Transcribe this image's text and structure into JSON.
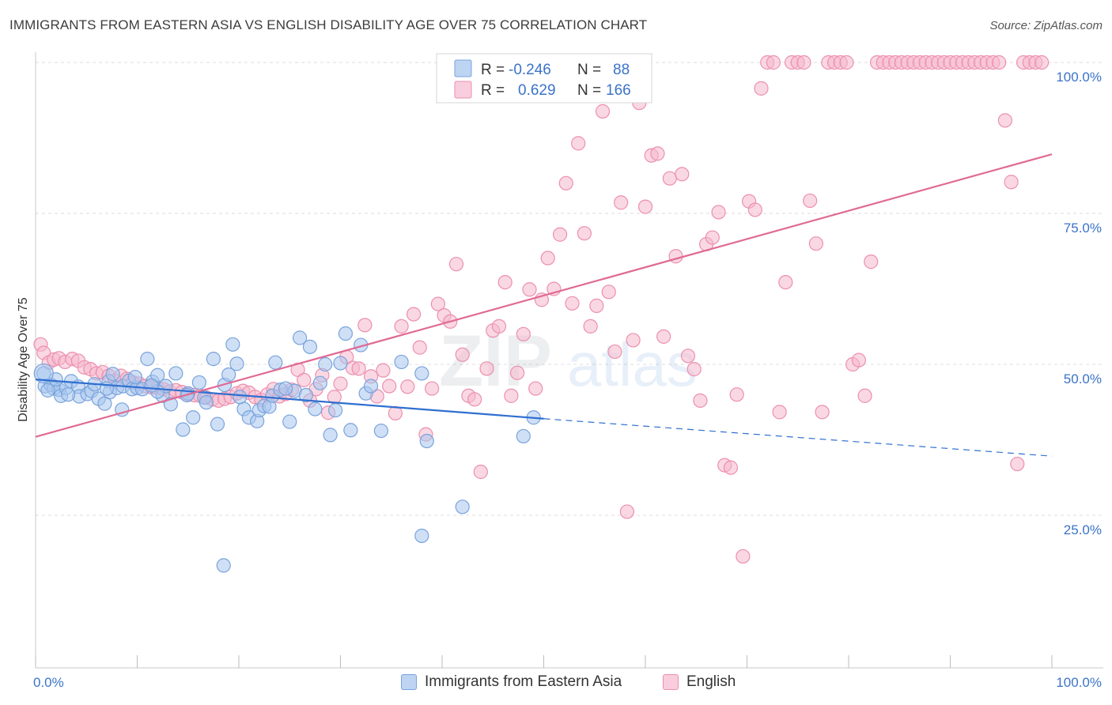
{
  "header": {
    "title": "IMMIGRANTS FROM EASTERN ASIA VS ENGLISH DISABILITY AGE OVER 75 CORRELATION CHART",
    "source": "Source: ZipAtlas.com"
  },
  "watermark": {
    "zip": "ZIP",
    "atlas": "atlas"
  },
  "legend_top": {
    "rows": [
      {
        "r_label": "R =",
        "r_value": "-0.246",
        "n_label": "N =",
        "n_value": "88"
      },
      {
        "r_label": "R =",
        "r_value": "0.629",
        "n_label": "N =",
        "n_value": "166"
      }
    ]
  },
  "colors": {
    "blue_fill": "#a8c6ee",
    "blue_stroke": "#7aa3dc",
    "blue_line": "#2f6fd0",
    "pink_fill": "#f6b8cc",
    "pink_stroke": "#ec8fae",
    "pink_line": "#e06a94",
    "tick_text": "#3b73c8"
  },
  "chart_data": {
    "type": "scatter",
    "title": "IMMIGRANTS FROM EASTERN ASIA VS ENGLISH DISABILITY AGE OVER 75 CORRELATION CHART",
    "xlabel": "",
    "ylabel": "Disability Age Over 75",
    "xlim": [
      0,
      100
    ],
    "ylim": [
      0,
      103
    ],
    "x_tick_labels": [
      "0.0%",
      "100.0%"
    ],
    "y_tick_labels": [
      "25.0%",
      "50.0%",
      "75.0%",
      "100.0%"
    ],
    "y_ticks": [
      25,
      50,
      75,
      100
    ],
    "grid": "dashed horizontal",
    "legend": "top-center and bottom",
    "series": [
      {
        "name": "Immigrants from Eastern Asia",
        "color": "#a8c6ee",
        "trend": {
          "x": [
            0,
            50
          ],
          "y": [
            47.5,
            41.0
          ],
          "dashed_to": [
            100,
            34.8
          ]
        },
        "points": [
          [
            0.8,
            48.5
          ],
          [
            0.9,
            46.4
          ],
          [
            1.5,
            46.6
          ],
          [
            1.8,
            46.0
          ],
          [
            2.3,
            45.8
          ],
          [
            2.5,
            44.8
          ],
          [
            3.0,
            46.1
          ],
          [
            3.5,
            47.2
          ],
          [
            4.2,
            46.3
          ],
          [
            4.3,
            44.7
          ],
          [
            5.1,
            45.1
          ],
          [
            5.5,
            45.6
          ],
          [
            6.2,
            44.3
          ],
          [
            6.8,
            43.5
          ],
          [
            7.2,
            47.2
          ],
          [
            7.3,
            45.4
          ],
          [
            7.6,
            48.4
          ],
          [
            8.0,
            46.1
          ],
          [
            8.5,
            42.5
          ],
          [
            8.6,
            46.4
          ],
          [
            9.2,
            47.3
          ],
          [
            9.5,
            45.9
          ],
          [
            10.0,
            46.1
          ],
          [
            10.5,
            45.9
          ],
          [
            11.0,
            50.9
          ],
          [
            11.5,
            47.1
          ],
          [
            12.0,
            48.2
          ],
          [
            12.5,
            44.8
          ],
          [
            12.8,
            46.4
          ],
          [
            13.3,
            43.4
          ],
          [
            13.8,
            48.5
          ],
          [
            14.5,
            39.2
          ],
          [
            15.0,
            45.2
          ],
          [
            15.5,
            41.2
          ],
          [
            16.1,
            47.0
          ],
          [
            16.6,
            44.5
          ],
          [
            17.5,
            50.9
          ],
          [
            17.9,
            40.1
          ],
          [
            18.6,
            46.6
          ],
          [
            19.0,
            48.3
          ],
          [
            19.4,
            53.3
          ],
          [
            19.8,
            50.1
          ],
          [
            20.5,
            42.6
          ],
          [
            21.0,
            41.2
          ],
          [
            21.8,
            40.6
          ],
          [
            22.0,
            42.4
          ],
          [
            22.5,
            43.1
          ],
          [
            23.0,
            43.0
          ],
          [
            23.3,
            44.8
          ],
          [
            23.6,
            50.3
          ],
          [
            24.1,
            45.8
          ],
          [
            25.0,
            40.5
          ],
          [
            25.5,
            45.6
          ],
          [
            26.0,
            54.4
          ],
          [
            27.0,
            52.9
          ],
          [
            27.5,
            42.6
          ],
          [
            28.0,
            46.9
          ],
          [
            28.5,
            50.0
          ],
          [
            29.0,
            38.3
          ],
          [
            29.5,
            42.4
          ],
          [
            30.0,
            50.2
          ],
          [
            30.5,
            55.1
          ],
          [
            31.0,
            39.1
          ],
          [
            32.0,
            53.2
          ],
          [
            32.5,
            45.2
          ],
          [
            33.0,
            46.4
          ],
          [
            34.0,
            39.0
          ],
          [
            36.0,
            50.4
          ],
          [
            38.0,
            48.5
          ],
          [
            38.5,
            37.3
          ],
          [
            42.0,
            26.4
          ],
          [
            38.0,
            21.6
          ],
          [
            48.0,
            38.1
          ],
          [
            49.0,
            41.2
          ],
          [
            18.5,
            16.7
          ],
          [
            3.2,
            45.0
          ],
          [
            5.8,
            46.7
          ],
          [
            9.8,
            47.9
          ],
          [
            12.0,
            45.5
          ],
          [
            14.9,
            44.9
          ],
          [
            16.8,
            43.7
          ],
          [
            20.1,
            44.6
          ],
          [
            24.6,
            46.0
          ],
          [
            26.6,
            44.9
          ],
          [
            11.4,
            46.5
          ],
          [
            7.0,
            46.0
          ],
          [
            2.0,
            47.5
          ],
          [
            1.2,
            45.7
          ]
        ]
      },
      {
        "name": "English",
        "color": "#f6b8cc",
        "trend": {
          "x": [
            0,
            100
          ],
          "y": [
            38.0,
            84.8
          ]
        },
        "points": [
          [
            0.5,
            53.3
          ],
          [
            0.8,
            51.9
          ],
          [
            1.3,
            50.3
          ],
          [
            1.8,
            50.8
          ],
          [
            2.3,
            51.0
          ],
          [
            2.9,
            50.4
          ],
          [
            3.6,
            50.9
          ],
          [
            4.2,
            50.6
          ],
          [
            4.8,
            49.5
          ],
          [
            5.4,
            49.2
          ],
          [
            6.0,
            48.5
          ],
          [
            6.6,
            48.7
          ],
          [
            7.2,
            48.1
          ],
          [
            7.8,
            47.3
          ],
          [
            8.4,
            48.1
          ],
          [
            9.0,
            47.6
          ],
          [
            9.6,
            47.0
          ],
          [
            10.2,
            46.8
          ],
          [
            10.8,
            46.4
          ],
          [
            11.4,
            46.2
          ],
          [
            12.0,
            46.1
          ],
          [
            12.6,
            45.9
          ],
          [
            13.2,
            45.5
          ],
          [
            13.8,
            45.7
          ],
          [
            14.4,
            45.4
          ],
          [
            15.0,
            45.1
          ],
          [
            15.6,
            44.9
          ],
          [
            16.2,
            44.8
          ],
          [
            16.8,
            44.5
          ],
          [
            17.4,
            44.2
          ],
          [
            18.0,
            44.0
          ],
          [
            18.6,
            44.3
          ],
          [
            19.2,
            44.6
          ],
          [
            19.8,
            45.2
          ],
          [
            20.4,
            45.6
          ],
          [
            21.0,
            45.3
          ],
          [
            21.6,
            44.6
          ],
          [
            22.2,
            44.1
          ],
          [
            22.8,
            45.0
          ],
          [
            23.4,
            45.9
          ],
          [
            24.0,
            44.7
          ],
          [
            24.6,
            45.1
          ],
          [
            25.2,
            45.8
          ],
          [
            25.8,
            49.1
          ],
          [
            26.4,
            47.4
          ],
          [
            27.0,
            44.0
          ],
          [
            27.6,
            45.9
          ],
          [
            28.2,
            48.2
          ],
          [
            28.8,
            42.0
          ],
          [
            29.4,
            44.6
          ],
          [
            30.0,
            46.8
          ],
          [
            30.6,
            51.2
          ],
          [
            31.2,
            49.4
          ],
          [
            31.8,
            49.3
          ],
          [
            32.4,
            56.5
          ],
          [
            33.0,
            48.0
          ],
          [
            33.6,
            44.7
          ],
          [
            34.2,
            49.0
          ],
          [
            34.8,
            46.4
          ],
          [
            35.4,
            41.9
          ],
          [
            36.0,
            56.3
          ],
          [
            36.6,
            46.3
          ],
          [
            37.2,
            58.3
          ],
          [
            37.8,
            52.8
          ],
          [
            38.4,
            38.4
          ],
          [
            39.0,
            46.0
          ],
          [
            39.6,
            60.0
          ],
          [
            40.2,
            58.1
          ],
          [
            40.8,
            57.1
          ],
          [
            41.4,
            66.6
          ],
          [
            42.0,
            51.6
          ],
          [
            42.6,
            44.8
          ],
          [
            43.2,
            44.2
          ],
          [
            43.8,
            32.2
          ],
          [
            44.4,
            49.3
          ],
          [
            45.0,
            55.6
          ],
          [
            45.6,
            56.3
          ],
          [
            46.2,
            63.6
          ],
          [
            46.8,
            44.8
          ],
          [
            47.4,
            48.6
          ],
          [
            48.0,
            55.0
          ],
          [
            48.6,
            62.4
          ],
          [
            49.2,
            46.0
          ],
          [
            49.8,
            60.7
          ],
          [
            50.4,
            67.6
          ],
          [
            51.0,
            62.5
          ],
          [
            51.6,
            71.5
          ],
          [
            52.2,
            80.0
          ],
          [
            52.8,
            60.1
          ],
          [
            53.4,
            86.6
          ],
          [
            54.0,
            71.7
          ],
          [
            54.6,
            56.3
          ],
          [
            55.2,
            59.7
          ],
          [
            55.8,
            91.9
          ],
          [
            56.4,
            62.0
          ],
          [
            57.0,
            52.1
          ],
          [
            57.6,
            76.8
          ],
          [
            58.2,
            25.6
          ],
          [
            58.8,
            54.0
          ],
          [
            59.4,
            93.3
          ],
          [
            60.0,
            76.1
          ],
          [
            60.6,
            84.6
          ],
          [
            61.2,
            84.9
          ],
          [
            61.8,
            54.6
          ],
          [
            62.4,
            80.8
          ],
          [
            63.0,
            67.9
          ],
          [
            63.6,
            81.5
          ],
          [
            64.2,
            51.4
          ],
          [
            64.8,
            49.2
          ],
          [
            65.4,
            44.0
          ],
          [
            66.0,
            69.9
          ],
          [
            66.6,
            71.0
          ],
          [
            67.2,
            75.2
          ],
          [
            67.8,
            33.3
          ],
          [
            68.4,
            32.9
          ],
          [
            69.0,
            45.0
          ],
          [
            69.6,
            18.2
          ],
          [
            70.2,
            77.0
          ],
          [
            70.8,
            75.6
          ],
          [
            71.4,
            95.7
          ],
          [
            72.0,
            100.0
          ],
          [
            72.6,
            100.0
          ],
          [
            73.2,
            42.1
          ],
          [
            73.8,
            63.6
          ],
          [
            74.4,
            100.0
          ],
          [
            75.0,
            100.0
          ],
          [
            75.6,
            100.0
          ],
          [
            76.2,
            77.1
          ],
          [
            76.8,
            70.0
          ],
          [
            77.4,
            42.1
          ],
          [
            78.0,
            100.0
          ],
          [
            78.6,
            100.0
          ],
          [
            79.2,
            100.0
          ],
          [
            79.8,
            100.0
          ],
          [
            80.4,
            50.0
          ],
          [
            81.0,
            50.7
          ],
          [
            81.6,
            44.8
          ],
          [
            82.2,
            67.0
          ],
          [
            82.8,
            100.0
          ],
          [
            83.4,
            100.0
          ],
          [
            84.0,
            100.0
          ],
          [
            84.6,
            100.0
          ],
          [
            85.2,
            100.0
          ],
          [
            85.8,
            100.0
          ],
          [
            86.4,
            100.0
          ],
          [
            87.0,
            100.0
          ],
          [
            87.6,
            100.0
          ],
          [
            88.2,
            100.0
          ],
          [
            88.8,
            100.0
          ],
          [
            89.4,
            100.0
          ],
          [
            90.0,
            100.0
          ],
          [
            90.6,
            100.0
          ],
          [
            91.2,
            100.0
          ],
          [
            91.8,
            100.0
          ],
          [
            92.4,
            100.0
          ],
          [
            93.0,
            100.0
          ],
          [
            93.6,
            100.0
          ],
          [
            94.2,
            100.0
          ],
          [
            94.8,
            100.0
          ],
          [
            95.4,
            90.4
          ],
          [
            96.0,
            80.2
          ],
          [
            96.6,
            33.5
          ],
          [
            97.2,
            100.0
          ],
          [
            97.8,
            100.0
          ],
          [
            98.4,
            100.0
          ],
          [
            99.0,
            100.0
          ]
        ]
      }
    ]
  },
  "bottom_legend": {
    "items": [
      {
        "label": "Immigrants from Eastern Asia"
      },
      {
        "label": "English"
      }
    ]
  }
}
